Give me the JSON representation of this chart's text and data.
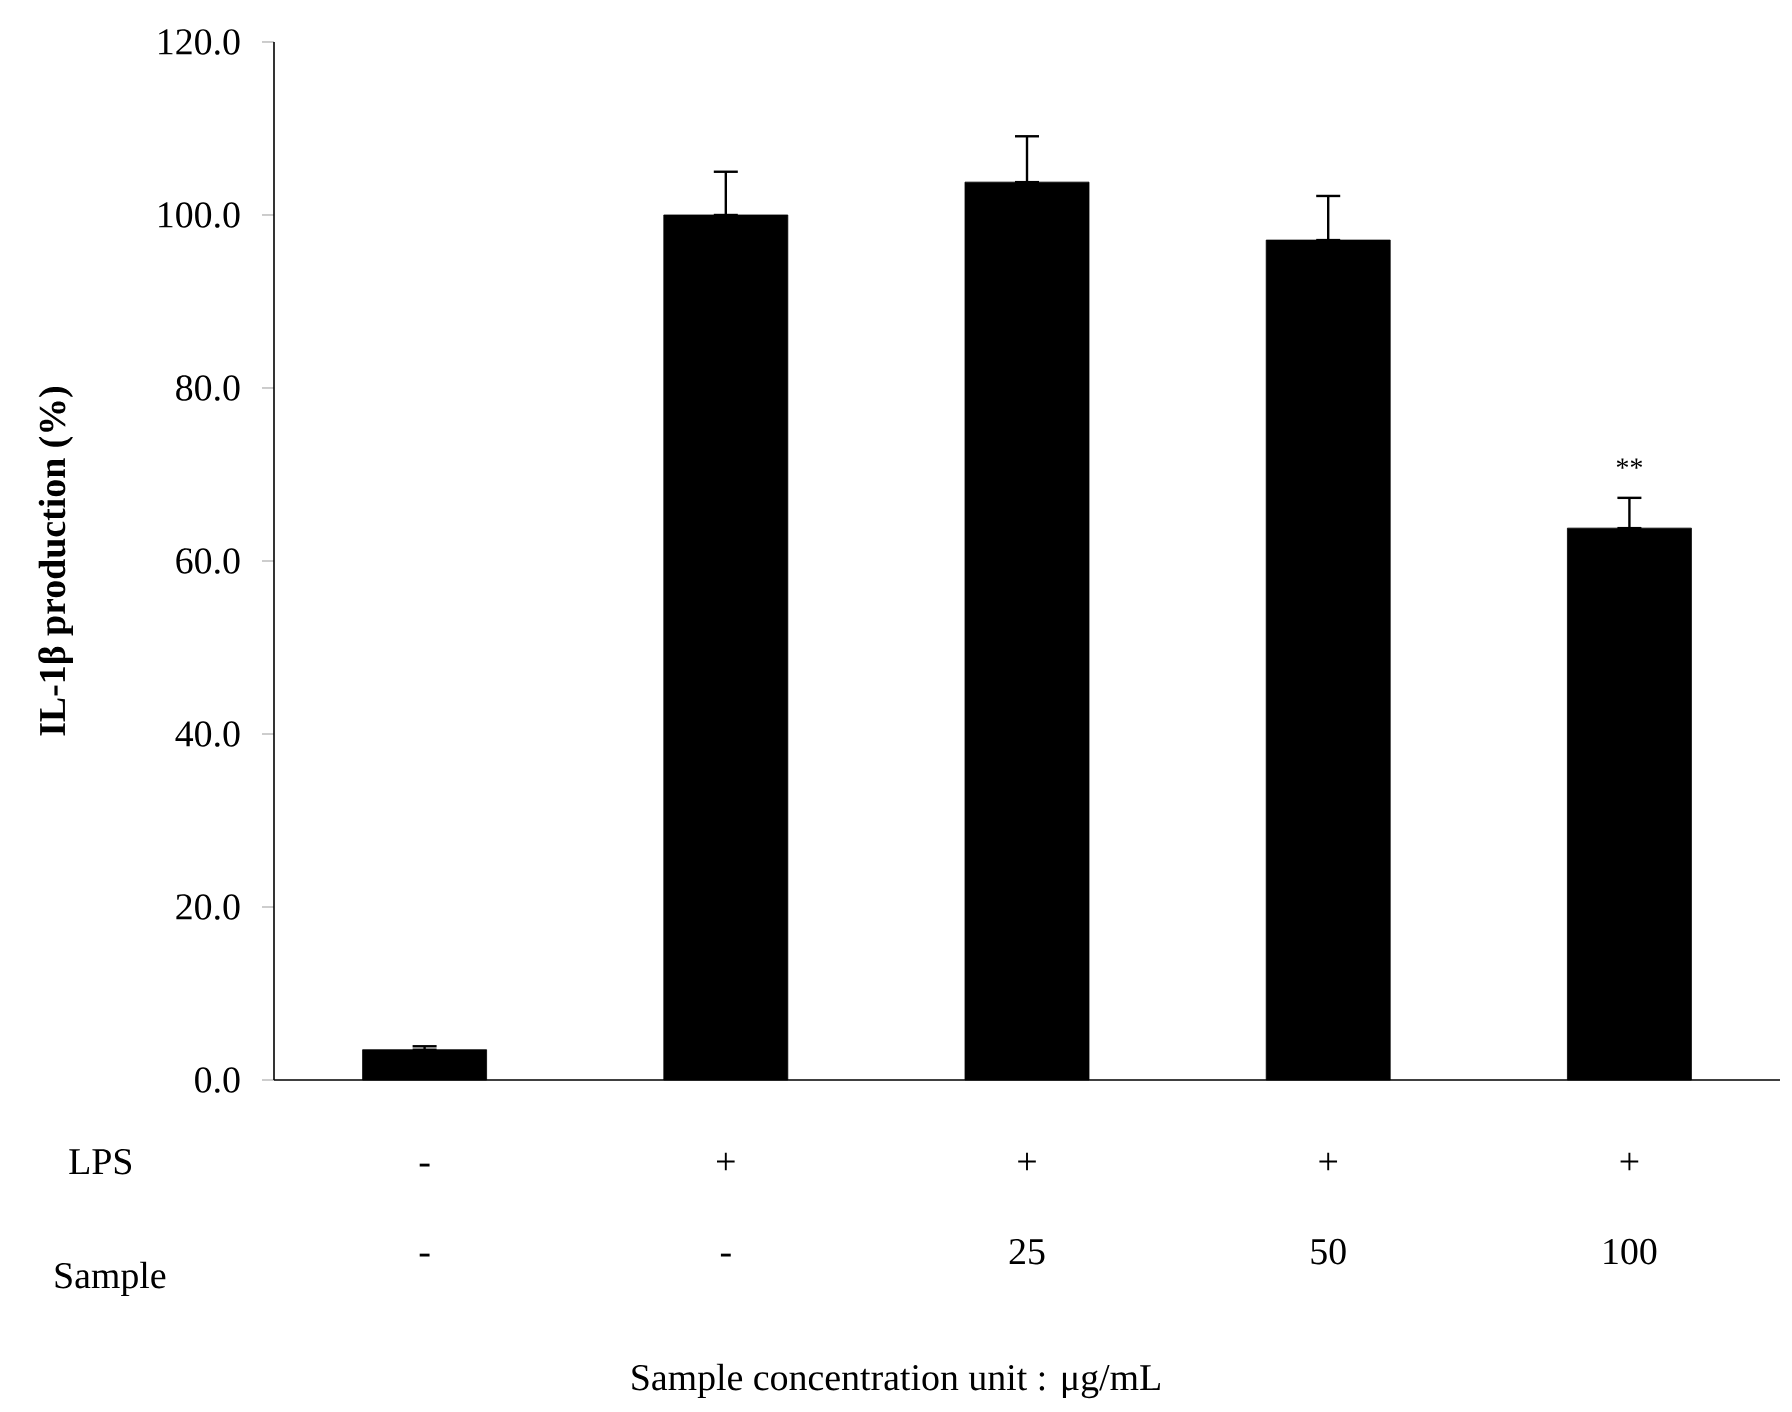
{
  "chart_data": {
    "type": "bar",
    "ylabel": "IL-1β production (%)",
    "xlabel": "Sample concentration unit : μg/mL",
    "categories": [
      "-",
      "-",
      "25",
      "50",
      "100"
    ],
    "values": [
      3.5,
      100,
      103.8,
      97.1,
      63.8
    ],
    "errors": [
      [
        3.5,
        3.9
      ],
      [
        100,
        105
      ],
      [
        103.8,
        109.1
      ],
      [
        97.1,
        102.2
      ],
      [
        63.8,
        67.3
      ]
    ],
    "color": "#000000",
    "ylim": [
      0,
      120
    ],
    "yticks": [
      {
        "value": 0,
        "label": "0.0"
      },
      {
        "value": 20,
        "label": "20.0"
      },
      {
        "value": 40,
        "label": "40.0"
      },
      {
        "value": 60,
        "label": "60.0"
      },
      {
        "value": 80,
        "label": "80.0"
      },
      {
        "value": 100,
        "label": "100.0"
      },
      {
        "value": 120,
        "label": "120.0"
      }
    ],
    "annotations": [
      {
        "text": "**",
        "x": "100",
        "y": 67.3
      },
      "LPS",
      "-",
      "+",
      "+",
      "+",
      "+",
      "Sample"
    ],
    "grid": false
  }
}
